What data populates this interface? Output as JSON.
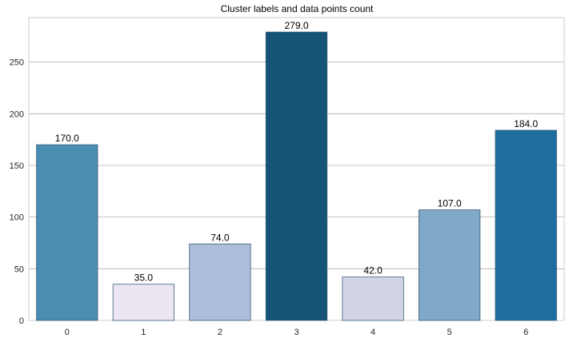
{
  "chart_data": {
    "type": "bar",
    "title": "Cluster labels and data points count",
    "xlabel": "",
    "ylabel": "",
    "categories": [
      "0",
      "1",
      "2",
      "3",
      "4",
      "5",
      "6"
    ],
    "values": [
      170,
      35,
      74,
      279,
      42,
      107,
      184
    ],
    "value_labels": [
      "170.0",
      "35.0",
      "74.0",
      "279.0",
      "42.0",
      "107.0",
      "184.0"
    ],
    "bar_colors": [
      "#4a8db3",
      "#ebe6f2",
      "#abbfdb",
      "#155377",
      "#d3d5e5",
      "#80a8c7",
      "#1f6d9f"
    ],
    "ylim": [
      0,
      293
    ],
    "yticks": [
      0,
      50,
      100,
      150,
      200,
      250
    ],
    "grid": true,
    "legend": "none"
  }
}
